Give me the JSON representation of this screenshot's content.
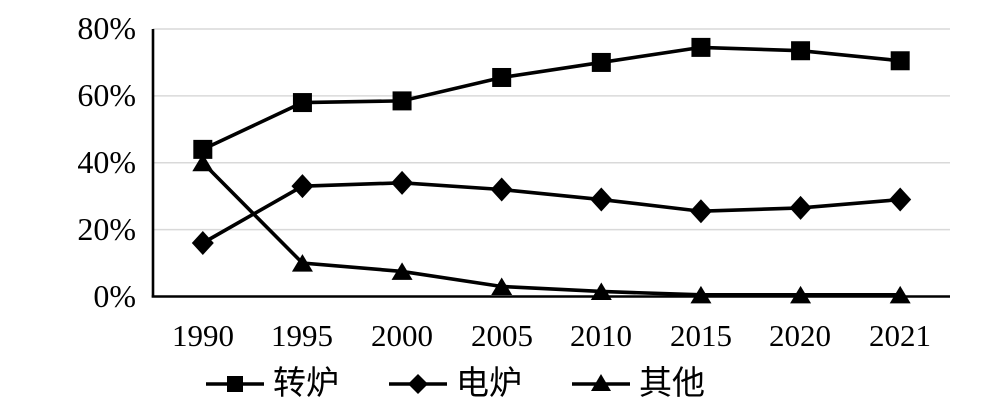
{
  "chart_data": {
    "type": "line",
    "title": "",
    "xlabel": "",
    "ylabel": "",
    "units": "percent",
    "categories": [
      "1990",
      "1995",
      "2000",
      "2005",
      "2010",
      "2015",
      "2020",
      "2021"
    ],
    "ylim": [
      0,
      80
    ],
    "yticks": [
      {
        "label": "0%",
        "value": 0
      },
      {
        "label": "20%",
        "value": 20
      },
      {
        "label": "40%",
        "value": 40
      },
      {
        "label": "60%",
        "value": 60
      },
      {
        "label": "80%",
        "value": 80
      }
    ],
    "grid": "horizontal",
    "legend_position": "bottom",
    "colors": {
      "series": "#000000",
      "grid": "#d9d9d9",
      "axis": "#000000",
      "background": "#ffffff"
    },
    "series": [
      {
        "name": "转炉",
        "marker": "square",
        "values": [
          44,
          58,
          58.5,
          65.5,
          70,
          74.5,
          73.5,
          70.5
        ]
      },
      {
        "name": "电炉",
        "marker": "diamond",
        "values": [
          16,
          33,
          34,
          32,
          29,
          25.5,
          26.5,
          29
        ]
      },
      {
        "name": "其他",
        "marker": "triangle",
        "values": [
          40,
          10,
          7.5,
          3,
          1.5,
          0.5,
          0.5,
          0.5
        ]
      }
    ]
  }
}
